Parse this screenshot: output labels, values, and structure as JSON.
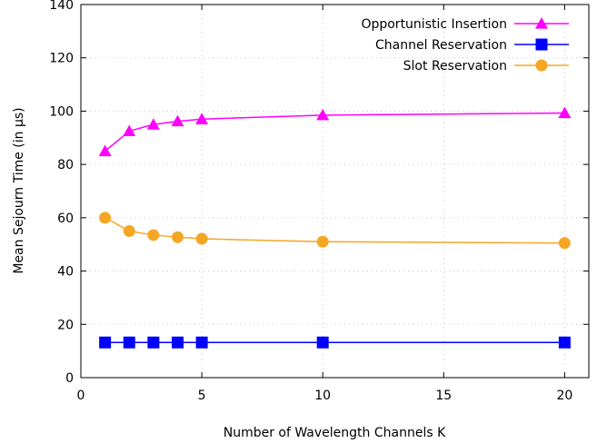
{
  "chart_data": {
    "type": "line",
    "xlabel": "Number of Wavelength Channels K",
    "ylabel": "Mean Sejourn Time (in µs)",
    "xlim": [
      0,
      21
    ],
    "ylim": [
      0,
      140
    ],
    "xticks": [
      0,
      5,
      10,
      15,
      20
    ],
    "yticks": [
      0,
      20,
      40,
      60,
      80,
      100,
      120,
      140
    ],
    "grid": true,
    "legend_position": "top-right",
    "series": [
      {
        "name": "Opportunistic Insertion",
        "color": "#ff00ff",
        "marker": "triangle",
        "x": [
          1,
          2,
          3,
          4,
          5,
          10,
          20
        ],
        "y": [
          85,
          92.5,
          95,
          96.2,
          97,
          98.5,
          99.3
        ]
      },
      {
        "name": "Channel Reservation",
        "color": "#0000ff",
        "marker": "square",
        "x": [
          1,
          2,
          3,
          4,
          5,
          10,
          20
        ],
        "y": [
          13.2,
          13.2,
          13.2,
          13.2,
          13.2,
          13.2,
          13.2
        ]
      },
      {
        "name": "Slot Reservation",
        "color": "#f5a623",
        "marker": "circle",
        "x": [
          1,
          2,
          3,
          4,
          5,
          10,
          20
        ],
        "y": [
          60,
          55,
          53.5,
          52.7,
          52.1,
          51,
          50.5
        ]
      }
    ]
  }
}
